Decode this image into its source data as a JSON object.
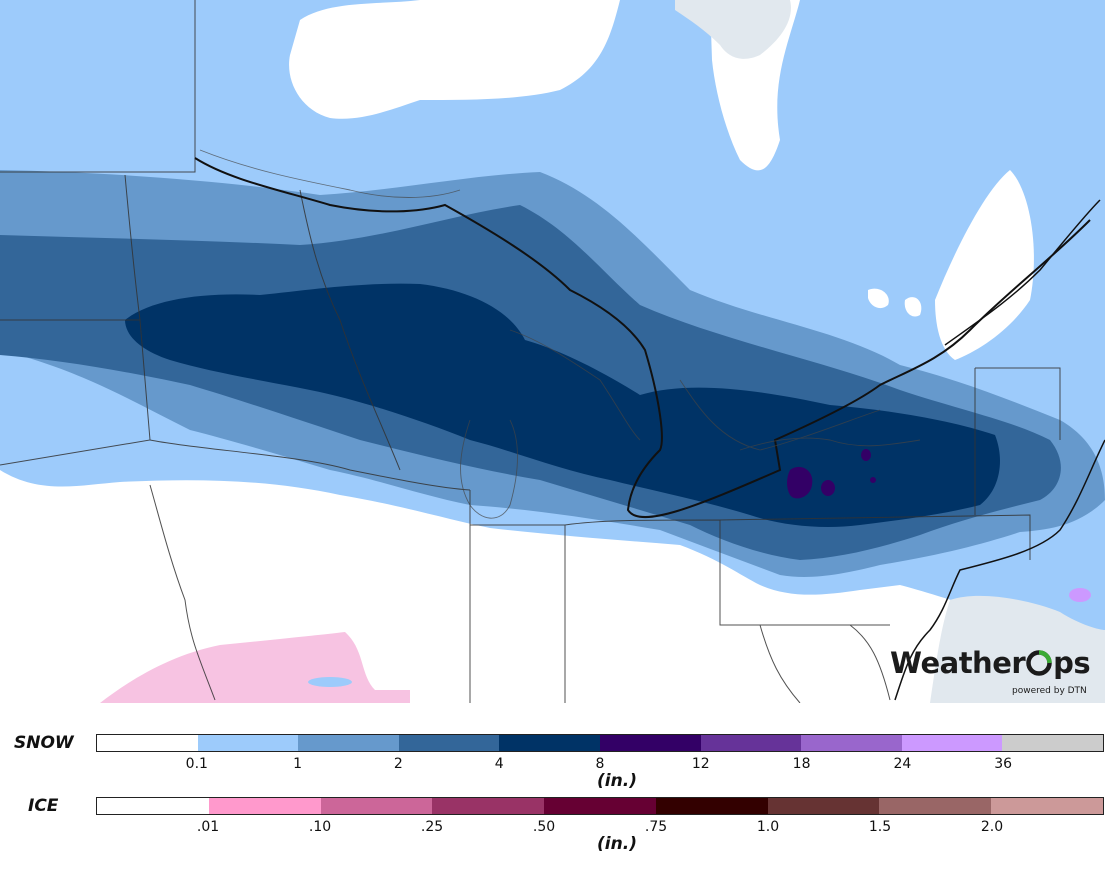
{
  "brand": {
    "name_part1": "Weather",
    "name_part2": "ps",
    "powered_by": "powered by DTN",
    "accent_color": "#3aaa35"
  },
  "colors": {
    "land": "#ffffff",
    "lake": "#e1e8ee",
    "snow_light": "#9dcbfb",
    "snow_medium": "#6699cc",
    "snow_heavy": "#336699",
    "snow_very_heavy": "#003366",
    "snow_extreme": "#330066",
    "ice_light": "#f7c3e2"
  },
  "legend": {
    "snow": {
      "title": "SNOW",
      "unit": "(in.)",
      "colors": [
        "#ffffff",
        "#9dcbfb",
        "#6699cc",
        "#336699",
        "#003366",
        "#330066",
        "#663399",
        "#9966cc",
        "#cc99ff",
        "#cccccc"
      ],
      "ticks": [
        "0.1",
        "1",
        "2",
        "4",
        "8",
        "12",
        "18",
        "24",
        "36"
      ]
    },
    "ice": {
      "title": "ICE",
      "unit": "(in.)",
      "colors": [
        "#ffffff",
        "#ff99cc",
        "#cc6699",
        "#993366",
        "#660033",
        "#330000",
        "#663333",
        "#996666",
        "#cc9999"
      ],
      "ticks": [
        ".01",
        ".10",
        ".25",
        ".50",
        ".75",
        "1.0",
        "1.5",
        "2.0"
      ]
    }
  }
}
